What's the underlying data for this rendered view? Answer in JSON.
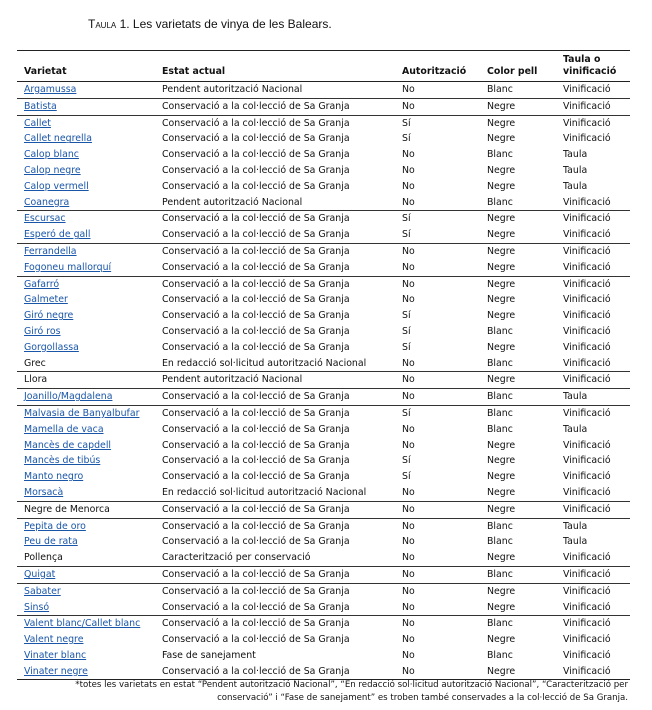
{
  "title": {
    "label": "Taula 1.",
    "text": "Les varietats de vinya de les Balears."
  },
  "table": {
    "header": [
      "Varietat",
      "Estat actual",
      "Autorització",
      "Color pell",
      "Taula o vinificació"
    ],
    "rows": [
      {
        "cells": [
          "Argamussa",
          "Pendent autorització Nacional",
          "No",
          "Blanc",
          "Vinificació"
        ],
        "link": true
      },
      {
        "cells": [
          "Batista",
          "Conservació a la col·lecció de Sa Granja",
          "No",
          "Negre",
          "Vinificació"
        ],
        "link": true
      },
      {
        "cells": [
          "Callet",
          "Conservació a la col·lecció de Sa Granja",
          "Sí",
          "Negre",
          "Vinificació"
        ],
        "link": true
      },
      {
        "cells": [
          "Callet negrella",
          "Conservació a la col·lecció de Sa Granja",
          "Sí",
          "Negre",
          "Vinificació"
        ],
        "link": true
      },
      {
        "cells": [
          "Calop blanc",
          "Conservació a la col·lecció de Sa Granja",
          "No",
          "Blanc",
          "Taula"
        ],
        "link": true
      },
      {
        "cells": [
          "Calop negre",
          "Conservació a la col·lecció de Sa Granja",
          "No",
          "Negre",
          "Taula"
        ],
        "link": true
      },
      {
        "cells": [
          "Calop vermell",
          "Conservació a la col·lecció de Sa Granja",
          "No",
          "Negre",
          "Taula"
        ],
        "link": true
      },
      {
        "cells": [
          "Coanegra",
          "Pendent autorització Nacional",
          "No",
          "Blanc",
          "Vinificació"
        ],
        "link": true
      },
      {
        "cells": [
          "Escursac",
          "Conservació a la col·lecció de Sa Granja",
          "Sí",
          "Negre",
          "Vinificació"
        ],
        "link": true
      },
      {
        "cells": [
          "Esperó de gall",
          "Conservació a la col·lecció de Sa Granja",
          "Sí",
          "Negre",
          "Vinificació"
        ],
        "link": true
      },
      {
        "cells": [
          "Ferrandella",
          "Conservació a la col·lecció de Sa Granja",
          "No",
          "Negre",
          "Vinificació"
        ],
        "link": true
      },
      {
        "cells": [
          "Fogoneu mallorquí",
          "Conservació a la col·lecció de Sa Granja",
          "No",
          "Negre",
          "Vinificació"
        ],
        "link": true
      },
      {
        "cells": [
          "Gafarró",
          "Conservació a la col·lecció de Sa Granja",
          "No",
          "Negre",
          "Vinificació"
        ],
        "link": true
      },
      {
        "cells": [
          "Galmeter",
          "Conservació a la col·lecció de Sa Granja",
          "No",
          "Negre",
          "Vinificació"
        ],
        "link": true
      },
      {
        "cells": [
          "Giró negre",
          "Conservació a la col·lecció de Sa Granja",
          "Sí",
          "Negre",
          "Vinificació"
        ],
        "link": true
      },
      {
        "cells": [
          "Giró ros",
          "Conservació a la col·lecció de Sa Granja",
          "Sí",
          "Blanc",
          "Vinificació"
        ],
        "link": true
      },
      {
        "cells": [
          "Gorgollassa",
          "Conservació a la col·lecció de Sa Granja",
          "Sí",
          "Negre",
          "Vinificació"
        ],
        "link": true
      },
      {
        "cells": [
          "Grec",
          "En redacció sol·licitud autorització Nacional",
          "No",
          "Blanc",
          "Vinificació"
        ],
        "link": false
      },
      {
        "cells": [
          "Llora",
          "Pendent autorització Nacional",
          "No",
          "Negre",
          "Vinificació"
        ],
        "link": false
      },
      {
        "cells": [
          "Joanillo/Magdalena",
          "Conservació a la col·lecció de Sa Granja",
          "No",
          "Blanc",
          "Taula"
        ],
        "link": true
      },
      {
        "cells": [
          "Malvasia de Banyalbufar",
          "Conservació a la col·lecció de Sa Granja",
          "Sí",
          "Blanc",
          "Vinificació"
        ],
        "link": true
      },
      {
        "cells": [
          "Mamella de vaca",
          "Conservació a la col·lecció de Sa Granja",
          "No",
          "Blanc",
          "Taula"
        ],
        "link": true
      },
      {
        "cells": [
          "Mancès de capdell",
          "Conservació a la col·lecció de Sa Granja",
          "No",
          "Negre",
          "Vinificació"
        ],
        "link": true
      },
      {
        "cells": [
          "Mancès de tibús",
          "Conservació a la col·lecció de Sa Granja",
          "Sí",
          "Negre",
          "Vinificació"
        ],
        "link": true
      },
      {
        "cells": [
          "Manto negro",
          "Conservació a la col·lecció de Sa Granja",
          "Sí",
          "Negre",
          "Vinificació"
        ],
        "link": true
      },
      {
        "cells": [
          "Morsacà",
          "En redacció sol·licitud autorització Nacional",
          "No",
          "Negre",
          "Vinificació"
        ],
        "link": true
      },
      {
        "cells": [
          "Negre de Menorca",
          "Conservació a la col·lecció de Sa Granja",
          "No",
          "Negre",
          "Vinificació"
        ],
        "link": false
      },
      {
        "cells": [
          "Pepita de oro",
          "Conservació a la col·lecció de Sa Granja",
          "No",
          "Blanc",
          "Taula"
        ],
        "link": true
      },
      {
        "cells": [
          "Peu de rata",
          "Conservació a la col·lecció de Sa Granja",
          "No",
          "Blanc",
          "Taula"
        ],
        "link": true
      },
      {
        "cells": [
          "Pollença",
          "Caracterització per conservació",
          "No",
          "Negre",
          "Vinificació"
        ],
        "link": false
      },
      {
        "cells": [
          "Quigat",
          "Conservació a la col·lecció de Sa Granja",
          "No",
          "Blanc",
          "Vinificació"
        ],
        "link": true
      },
      {
        "cells": [
          "Sabater",
          "Conservació a la col·lecció de Sa Granja",
          "No",
          "Negre",
          "Vinificació"
        ],
        "link": true
      },
      {
        "cells": [
          "Sinsó",
          "Conservació a la col·lecció de Sa Granja",
          "No",
          "Negre",
          "Vinificació"
        ],
        "link": true
      },
      {
        "cells": [
          "Valent blanc/Callet blanc",
          "Conservació a la col·lecció de Sa Granja",
          "No",
          "Blanc",
          "Vinificació"
        ],
        "link": true
      },
      {
        "cells": [
          "Valent negre",
          "Conservació a la col·lecció de Sa Granja",
          "No",
          "Negre",
          "Vinificació"
        ],
        "link": true
      },
      {
        "cells": [
          "Vinater blanc",
          "Fase de sanejament",
          "No",
          "Blanc",
          "Vinificació"
        ],
        "link": true
      },
      {
        "cells": [
          "Vinater negre",
          "Conservació a la col·lecció de Sa Granja",
          "No",
          "Negre",
          "Vinificació"
        ],
        "link": true
      }
    ]
  },
  "footnote": "*totes les varietats en estat “Pendent autorització Nacional”, “En redacció sol·licitud autorització Nacional”, “Caracterització per conservació” i “Fase de sanejament” es troben també conservades a la col·lecció de Sa Granja."
}
